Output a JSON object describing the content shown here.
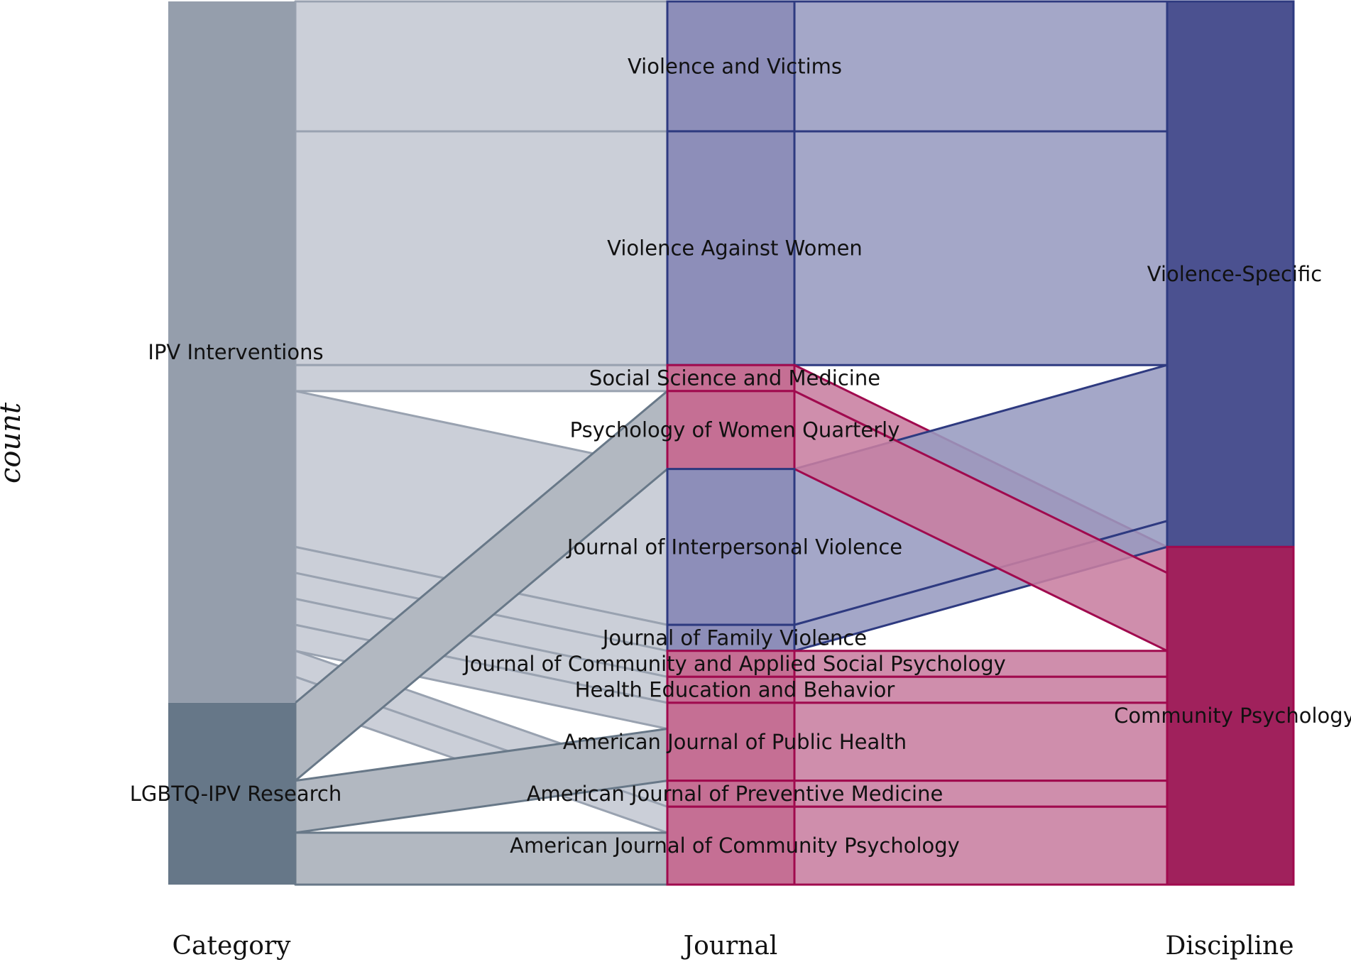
{
  "chart_data": {
    "type": "alluvial",
    "ylabel": "count",
    "axes": [
      "Category",
      "Journal",
      "Discipline"
    ],
    "categories": [
      "IPV Interventions",
      "LGBTQ-IPV Research"
    ],
    "journals": [
      "Violence and Victims",
      "Violence Against Women",
      "Social Science and Medicine",
      "Psychology of Women Quarterly",
      "Journal of Interpersonal Violence",
      "Journal of Family Violence",
      "Journal of Community and Applied Social Psychology",
      "Health Education and Behavior",
      "American Journal of Public Health",
      "American Journal of Preventive Medicine",
      "American Journal of Community Psychology"
    ],
    "disciplines": [
      "Violence-Specific",
      "Community Psychology"
    ],
    "discipline_order": [
      "Violence-Specific",
      "Community Psychology"
    ],
    "flows": [
      {
        "category": "IPV Interventions",
        "journal": "Violence and Victims",
        "discipline": "Violence-Specific",
        "count": 5
      },
      {
        "category": "IPV Interventions",
        "journal": "Violence Against Women",
        "discipline": "Violence-Specific",
        "count": 9
      },
      {
        "category": "IPV Interventions",
        "journal": "Social Science and Medicine",
        "discipline": "Community Psychology",
        "count": 1
      },
      {
        "category": "IPV Interventions",
        "journal": "Journal of Interpersonal Violence",
        "discipline": "Violence-Specific",
        "count": 6
      },
      {
        "category": "IPV Interventions",
        "journal": "Journal of Family Violence",
        "discipline": "Violence-Specific",
        "count": 1
      },
      {
        "category": "IPV Interventions",
        "journal": "Journal of Community and Applied Social Psychology",
        "discipline": "Community Psychology",
        "count": 1
      },
      {
        "category": "IPV Interventions",
        "journal": "Health Education and Behavior",
        "discipline": "Community Psychology",
        "count": 1
      },
      {
        "category": "IPV Interventions",
        "journal": "American Journal of Public Health",
        "discipline": "Community Psychology",
        "count": 1
      },
      {
        "category": "IPV Interventions",
        "journal": "American Journal of Preventive Medicine",
        "discipline": "Community Psychology",
        "count": 1
      },
      {
        "category": "IPV Interventions",
        "journal": "American Journal of Community Psychology",
        "discipline": "Community Psychology",
        "count": 1
      },
      {
        "category": "LGBTQ-IPV Research",
        "journal": "Psychology of Women Quarterly",
        "discipline": "Community Psychology",
        "count": 3
      },
      {
        "category": "LGBTQ-IPV Research",
        "journal": "American Journal of Public Health",
        "discipline": "Community Psychology",
        "count": 2
      },
      {
        "category": "LGBTQ-IPV Research",
        "journal": "American Journal of Community Psychology",
        "discipline": "Community Psychology",
        "count": 2
      }
    ],
    "colors": {
      "category_nodes": {
        "IPV Interventions": "#959eac",
        "LGBTQ-IPV Research": "#667788"
      },
      "category_flows": {
        "IPV Interventions": "#cbcfd8",
        "LGBTQ-IPV Research": "#b2b8c1"
      },
      "category_strokes": {
        "IPV Interventions": "#99a2b0",
        "LGBTQ-IPV Research": "#687888"
      },
      "discipline_nodes": {
        "Violence-Specific": "#4b5190",
        "Community Psychology": "#a0215c"
      },
      "discipline_fill": {
        "Violence-Specific": "#8d8eb9",
        "Community Psychology": "#c56f94"
      },
      "discipline_flow": {
        "Violence-Specific": "#979bc0",
        "Community Psychology": "#c87ea0"
      },
      "discipline_strokes": {
        "Violence-Specific": "#2e3a80",
        "Community Psychology": "#a00a4e"
      }
    }
  }
}
